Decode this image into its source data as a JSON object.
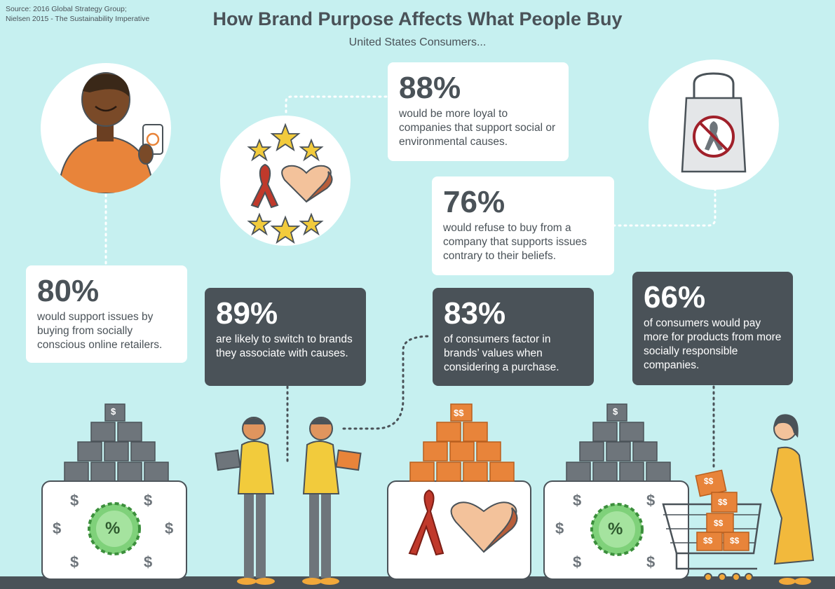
{
  "source": {
    "line1": "Source: 2016 Global Strategy Group;",
    "line2": "Nielsen 2015 - The Sustainability Imperative"
  },
  "header": {
    "title": "How Brand Purpose Affects What People Buy",
    "subtitle": "United States Consumers..."
  },
  "stats": [
    {
      "percent": "88%",
      "text": "would be more loyal to companies that support social or environmental causes."
    },
    {
      "percent": "76%",
      "text": "would refuse to buy from a company that supports issues contrary to their beliefs."
    },
    {
      "percent": "80%",
      "text": "would support issues by buying from socially conscious online retailers."
    },
    {
      "percent": "89%",
      "text": "are likely to switch to brands they associate with causes."
    },
    {
      "percent": "83%",
      "text": "of consumers factor in brands’ values when considering a purchase."
    },
    {
      "percent": "66%",
      "text": "of consumers would pay more for products from more socially responsible companies."
    }
  ],
  "icon_labels": {
    "dollar": "$",
    "double_dollar": "$$",
    "percent": "%"
  },
  "colors": {
    "background": "#c6f0f0",
    "dark_card": "#4a5258",
    "orange": "#e8843a",
    "gray_block": "#6e757b",
    "yellow": "#f2cb3c",
    "green_badge": "#7fd17a",
    "ribbon_red": "#c0392b"
  }
}
